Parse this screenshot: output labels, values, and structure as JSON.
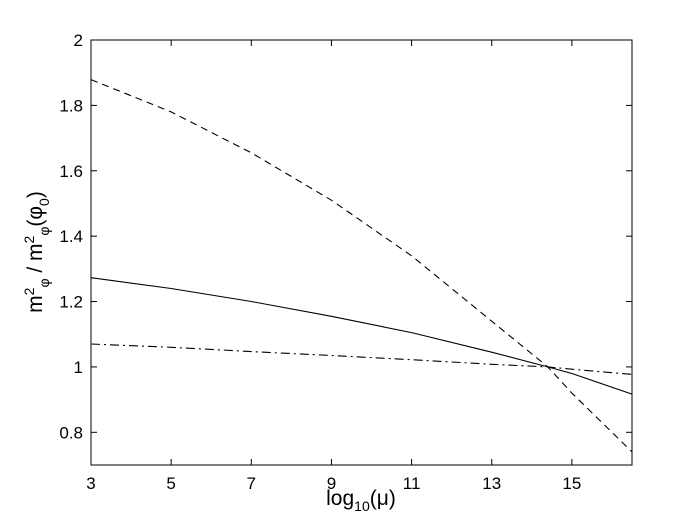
{
  "chart_data": {
    "type": "line",
    "xlabel": {
      "base": "log",
      "sub": "10",
      "arg": "(μ)"
    },
    "ylabel": {
      "parts": [
        {
          "t": "m"
        },
        {
          "t": "2",
          "sup": true
        },
        {
          "t": "φ",
          "sub": true
        },
        {
          "t": " / m"
        },
        {
          "t": "2",
          "sup": true
        },
        {
          "t": "φ",
          "sub": true
        },
        {
          "t": "(φ"
        },
        {
          "t": "0",
          "sub": true
        },
        {
          "t": ")"
        }
      ]
    },
    "xlim": [
      3,
      16.5
    ],
    "ylim": [
      0.7,
      2.0
    ],
    "xticks": [
      3,
      5,
      7,
      9,
      11,
      13,
      15
    ],
    "yticks": [
      0.8,
      1,
      1.2,
      1.4,
      1.6,
      1.8,
      2
    ],
    "ytick_labels": [
      "0.8",
      "1",
      "1.2",
      "1.4",
      "1.6",
      "1.8",
      "2"
    ],
    "grid": false,
    "series": [
      {
        "style": "solid",
        "x": [
          3,
          5,
          7,
          9,
          11,
          13,
          14.4,
          15,
          16.5
        ],
        "y": [
          1.273,
          1.24,
          1.2,
          1.155,
          1.105,
          1.045,
          1.0,
          0.98,
          0.917
        ]
      },
      {
        "style": "dashed",
        "x": [
          3,
          5,
          7,
          9,
          11,
          13,
          14.4,
          15,
          16.5
        ],
        "y": [
          1.879,
          1.78,
          1.655,
          1.51,
          1.34,
          1.14,
          1.0,
          0.92,
          0.74
        ]
      },
      {
        "style": "dashdot",
        "x": [
          3,
          5,
          7,
          9,
          11,
          13,
          14.4,
          15,
          16.5
        ],
        "y": [
          1.07,
          1.06,
          1.047,
          1.035,
          1.022,
          1.008,
          1.0,
          0.993,
          0.977
        ]
      }
    ]
  }
}
